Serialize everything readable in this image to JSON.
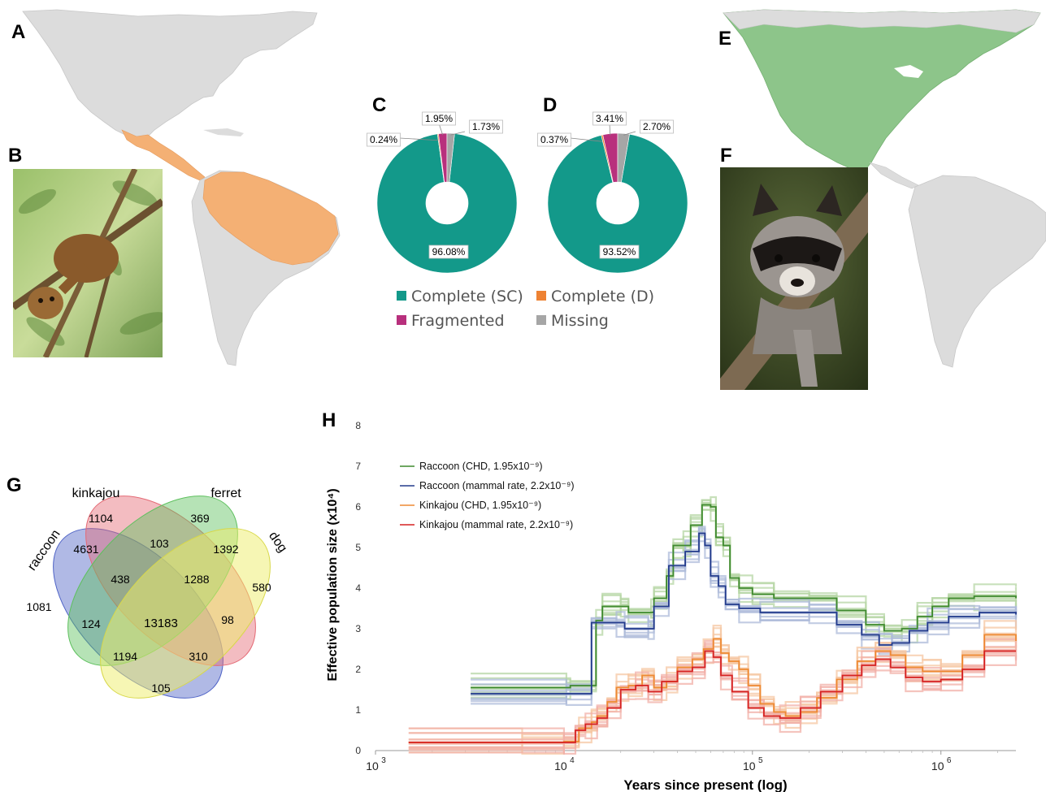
{
  "panels": {
    "A": "A",
    "B": "B",
    "C": "C",
    "D": "D",
    "E": "E",
    "F": "F",
    "G": "G",
    "H": "H"
  },
  "colors": {
    "kinkajou_range": "#f4b074",
    "raccoon_range": "#8dc58a",
    "land": "#dcdcdc",
    "sc": "#13998a",
    "d": "#ee8233",
    "frag": "#b8307d",
    "missing": "#a6a6a6"
  },
  "pies": [
    {
      "letter": "C",
      "sc": 96.08,
      "d": 0.24,
      "frag": 1.95,
      "missing": 1.73,
      "labels": {
        "sc": "96.08%",
        "d": "0.24%",
        "frag": "1.95%",
        "missing": "1.73%"
      }
    },
    {
      "letter": "D",
      "sc": 93.52,
      "d": 0.37,
      "frag": 3.41,
      "missing": 2.7,
      "labels": {
        "sc": "93.52%",
        "d": "0.37%",
        "frag": "3.41%",
        "missing": "2.70%"
      }
    }
  ],
  "pie_legend": {
    "sc": "Complete (SC)",
    "d": "Complete (D)",
    "frag": "Fragmented",
    "missing": "Missing"
  },
  "venn": {
    "sets": [
      "raccoon",
      "kinkajou",
      "ferret",
      "dog"
    ],
    "colors": [
      "#4f63c6",
      "#e46a75",
      "#5ec05e",
      "#eded6a"
    ],
    "counts": {
      "raccoon_only": "1081",
      "kinkajou_only": "1104",
      "ferret_only": "369",
      "dog_only": "580",
      "rk": "4631",
      "kf": "103",
      "fd": "1392",
      "rf": "124",
      "kd": "98",
      "rd": "105",
      "rkf": "438",
      "kfd": "1288",
      "rfd": "1194",
      "rkd": "310",
      "all": "13183"
    }
  },
  "chart_data": {
    "type": "line",
    "title": "",
    "xlabel": "Years since present (log)",
    "ylabel": "Effective population size (x10⁴)",
    "xscale": "log",
    "xlim": [
      1000,
      2500000
    ],
    "ylim": [
      0,
      8
    ],
    "x_ticks": [
      {
        "value": 1000,
        "base": "10",
        "exp": "3"
      },
      {
        "value": 10000,
        "base": "10",
        "exp": "4"
      },
      {
        "value": 100000,
        "base": "10",
        "exp": "5"
      },
      {
        "value": 1000000,
        "base": "10",
        "exp": "6"
      }
    ],
    "y_ticks": [
      "0",
      "1",
      "2",
      "3",
      "4",
      "5",
      "6",
      "7",
      "8"
    ],
    "legend_placement": "top-left",
    "series": [
      {
        "name": "Raccoon (CHD, 1.95x10⁻⁹)",
        "color": "#3f8a2f",
        "band": "#b6d6a4",
        "points": [
          [
            3200,
            1.55
          ],
          [
            10300,
            1.55
          ],
          [
            10800,
            1.6
          ],
          [
            14800,
            3.2
          ],
          [
            16000,
            3.55
          ],
          [
            20000,
            3.55
          ],
          [
            22000,
            3.4
          ],
          [
            29000,
            3.4
          ],
          [
            30000,
            3.75
          ],
          [
            35000,
            4.3
          ],
          [
            38000,
            5.05
          ],
          [
            43000,
            5.05
          ],
          [
            47000,
            5.55
          ],
          [
            54000,
            6.05
          ],
          [
            60000,
            6.0
          ],
          [
            64000,
            5.25
          ],
          [
            70000,
            5.05
          ],
          [
            76000,
            4.25
          ],
          [
            85000,
            4.0
          ],
          [
            100000,
            3.85
          ],
          [
            130000,
            3.75
          ],
          [
            200000,
            3.75
          ],
          [
            280000,
            3.45
          ],
          [
            400000,
            3.1
          ],
          [
            500000,
            2.95
          ],
          [
            620000,
            3.0
          ],
          [
            750000,
            3.3
          ],
          [
            900000,
            3.55
          ],
          [
            1100000,
            3.75
          ],
          [
            1500000,
            3.8
          ],
          [
            2500000,
            3.75
          ]
        ]
      },
      {
        "name": "Raccoon (mammal rate, 2.2x10⁻⁹)",
        "color": "#233b8c",
        "band": "#aebbd9",
        "points": [
          [
            3200,
            1.4
          ],
          [
            10300,
            1.4
          ],
          [
            14000,
            3.15
          ],
          [
            19000,
            3.15
          ],
          [
            21000,
            3.0
          ],
          [
            28000,
            3.0
          ],
          [
            30000,
            3.55
          ],
          [
            36000,
            4.55
          ],
          [
            44000,
            4.9
          ],
          [
            52000,
            5.35
          ],
          [
            56000,
            5.05
          ],
          [
            60000,
            4.3
          ],
          [
            66000,
            4.05
          ],
          [
            72000,
            3.6
          ],
          [
            85000,
            3.5
          ],
          [
            110000,
            3.4
          ],
          [
            200000,
            3.4
          ],
          [
            280000,
            3.1
          ],
          [
            380000,
            2.85
          ],
          [
            470000,
            2.6
          ],
          [
            550000,
            2.65
          ],
          [
            680000,
            2.95
          ],
          [
            850000,
            3.15
          ],
          [
            1100000,
            3.3
          ],
          [
            1600000,
            3.4
          ],
          [
            2500000,
            3.35
          ]
        ]
      },
      {
        "name": "Kinkajou (CHD, 1.95x10⁻⁹)",
        "color": "#ee8a33",
        "band": "#f5c7a3",
        "points": [
          [
            1500,
            0.2
          ],
          [
            6000,
            0.2
          ],
          [
            10000,
            0.22
          ],
          [
            12000,
            0.55
          ],
          [
            14000,
            0.7
          ],
          [
            15000,
            0.85
          ],
          [
            17000,
            1.2
          ],
          [
            19000,
            1.55
          ],
          [
            22000,
            1.6
          ],
          [
            26000,
            1.85
          ],
          [
            30000,
            1.55
          ],
          [
            35000,
            1.7
          ],
          [
            40000,
            2.05
          ],
          [
            48000,
            2.25
          ],
          [
            55000,
            2.5
          ],
          [
            62000,
            2.75
          ],
          [
            68000,
            2.4
          ],
          [
            75000,
            2.2
          ],
          [
            85000,
            2.0
          ],
          [
            95000,
            1.6
          ],
          [
            110000,
            1.15
          ],
          [
            130000,
            0.95
          ],
          [
            150000,
            0.85
          ],
          [
            180000,
            0.95
          ],
          [
            220000,
            1.3
          ],
          [
            280000,
            1.75
          ],
          [
            360000,
            2.2
          ],
          [
            450000,
            2.45
          ],
          [
            540000,
            2.35
          ],
          [
            650000,
            2.05
          ],
          [
            800000,
            1.95
          ],
          [
            1000000,
            1.95
          ],
          [
            1300000,
            2.35
          ],
          [
            1700000,
            2.85
          ],
          [
            2500000,
            2.7
          ]
        ]
      },
      {
        "name": "Kinkajou (mammal rate, 2.2x10⁻⁹)",
        "color": "#d62222",
        "band": "#f2b0a8",
        "points": [
          [
            1500,
            0.2
          ],
          [
            10000,
            0.2
          ],
          [
            11500,
            0.5
          ],
          [
            13000,
            0.65
          ],
          [
            15000,
            0.8
          ],
          [
            17000,
            1.05
          ],
          [
            20000,
            1.5
          ],
          [
            24000,
            1.6
          ],
          [
            28000,
            1.45
          ],
          [
            33000,
            1.7
          ],
          [
            40000,
            1.95
          ],
          [
            48000,
            2.05
          ],
          [
            56000,
            2.45
          ],
          [
            62000,
            2.3
          ],
          [
            68000,
            1.85
          ],
          [
            78000,
            1.45
          ],
          [
            95000,
            1.05
          ],
          [
            115000,
            0.85
          ],
          [
            140000,
            0.8
          ],
          [
            180000,
            1.05
          ],
          [
            230000,
            1.45
          ],
          [
            300000,
            1.85
          ],
          [
            380000,
            2.1
          ],
          [
            450000,
            2.25
          ],
          [
            540000,
            2.05
          ],
          [
            650000,
            1.8
          ],
          [
            800000,
            1.7
          ],
          [
            1000000,
            1.75
          ],
          [
            1300000,
            2.0
          ],
          [
            1700000,
            2.45
          ],
          [
            2500000,
            2.45
          ]
        ]
      }
    ]
  }
}
